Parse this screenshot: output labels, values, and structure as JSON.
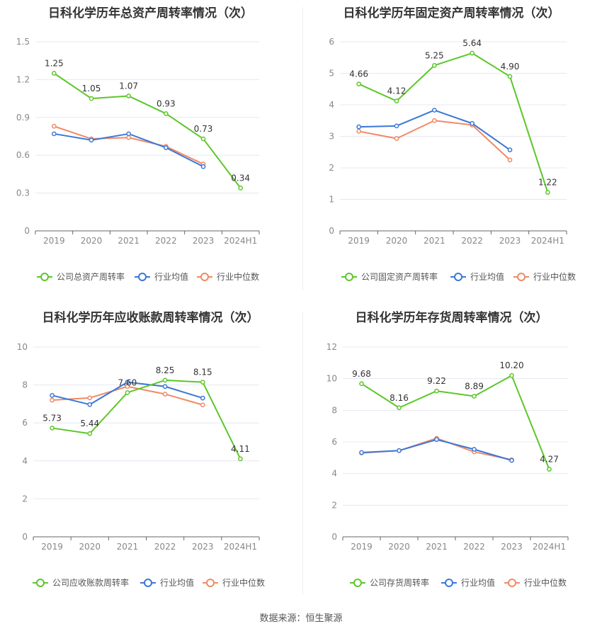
{
  "colors": {
    "company": "#5cc72a",
    "avg": "#3a78d8",
    "median": "#f08a64",
    "grid": "#e6e8f0",
    "axis": "#666666",
    "tick_text": "#888888",
    "label_text": "#333333"
  },
  "source_text": "数据来源：恒生聚源",
  "chart_data": [
    {
      "type": "line",
      "title": "日科化学历年总资产周转率情况（次）",
      "categories": [
        "2019",
        "2020",
        "2021",
        "2022",
        "2023",
        "2024H1"
      ],
      "yticks": [
        "0",
        "0.3",
        "0.6",
        "0.9",
        "1.2",
        "1.5"
      ],
      "ylim": [
        0,
        1.5
      ],
      "series": [
        {
          "name": "公司总资产周转率",
          "values": [
            1.25,
            1.05,
            1.07,
            0.93,
            0.73,
            0.34
          ],
          "labels": [
            "1.25",
            "1.05",
            "1.07",
            "0.93",
            "0.73",
            "0.34"
          ]
        },
        {
          "name": "行业均值",
          "values": [
            0.77,
            0.72,
            0.77,
            0.66,
            0.51,
            null
          ]
        },
        {
          "name": "行业中位数",
          "values": [
            0.83,
            0.73,
            0.74,
            0.67,
            0.53,
            null
          ]
        }
      ]
    },
    {
      "type": "line",
      "title": "日科化学历年固定资产周转率情况（次）",
      "categories": [
        "2019",
        "2020",
        "2021",
        "2022",
        "2023",
        "2024H1"
      ],
      "yticks": [
        "0",
        "1",
        "2",
        "3",
        "4",
        "5",
        "6"
      ],
      "ylim": [
        0,
        6
      ],
      "series": [
        {
          "name": "公司固定资产周转率",
          "values": [
            4.66,
            4.12,
            5.25,
            5.64,
            4.9,
            1.22
          ],
          "labels": [
            "4.66",
            "4.12",
            "5.25",
            "5.64",
            "4.90",
            "1.22"
          ]
        },
        {
          "name": "行业均值",
          "values": [
            3.3,
            3.33,
            3.83,
            3.41,
            2.57,
            null
          ]
        },
        {
          "name": "行业中位数",
          "values": [
            3.16,
            2.93,
            3.5,
            3.36,
            2.25,
            null
          ]
        }
      ]
    },
    {
      "type": "line",
      "title": "日科化学历年应收账款周转率情况（次）",
      "categories": [
        "2019",
        "2020",
        "2021",
        "2022",
        "2023",
        "2024H1"
      ],
      "yticks": [
        "0",
        "2",
        "4",
        "6",
        "8",
        "10"
      ],
      "ylim": [
        0,
        10
      ],
      "series": [
        {
          "name": "公司应收账款周转率",
          "values": [
            5.73,
            5.44,
            7.6,
            8.25,
            8.15,
            4.11
          ],
          "labels": [
            "5.73",
            "5.44",
            "7.60",
            "8.25",
            "8.15",
            "4.11"
          ]
        },
        {
          "name": "行业均值",
          "values": [
            7.45,
            6.97,
            8.15,
            7.92,
            7.31,
            null
          ]
        },
        {
          "name": "行业中位数",
          "values": [
            7.2,
            7.32,
            7.92,
            7.52,
            6.95,
            null
          ]
        }
      ]
    },
    {
      "type": "line",
      "title": "日科化学历年存货周转率情况（次）",
      "categories": [
        "2019",
        "2020",
        "2021",
        "2022",
        "2023",
        "2024H1"
      ],
      "yticks": [
        "0",
        "2",
        "4",
        "6",
        "8",
        "10",
        "12"
      ],
      "ylim": [
        0,
        12
      ],
      "series": [
        {
          "name": "公司存货周转率",
          "values": [
            9.68,
            8.16,
            9.22,
            8.89,
            10.2,
            4.27
          ],
          "labels": [
            "9.68",
            "8.16",
            "9.22",
            "8.89",
            "10.20",
            "4.27"
          ]
        },
        {
          "name": "行业均值",
          "values": [
            5.33,
            5.45,
            6.15,
            5.53,
            4.83,
            null
          ]
        },
        {
          "name": "行业中位数",
          "values": [
            5.3,
            5.45,
            6.23,
            5.37,
            4.87,
            null
          ]
        }
      ]
    }
  ]
}
